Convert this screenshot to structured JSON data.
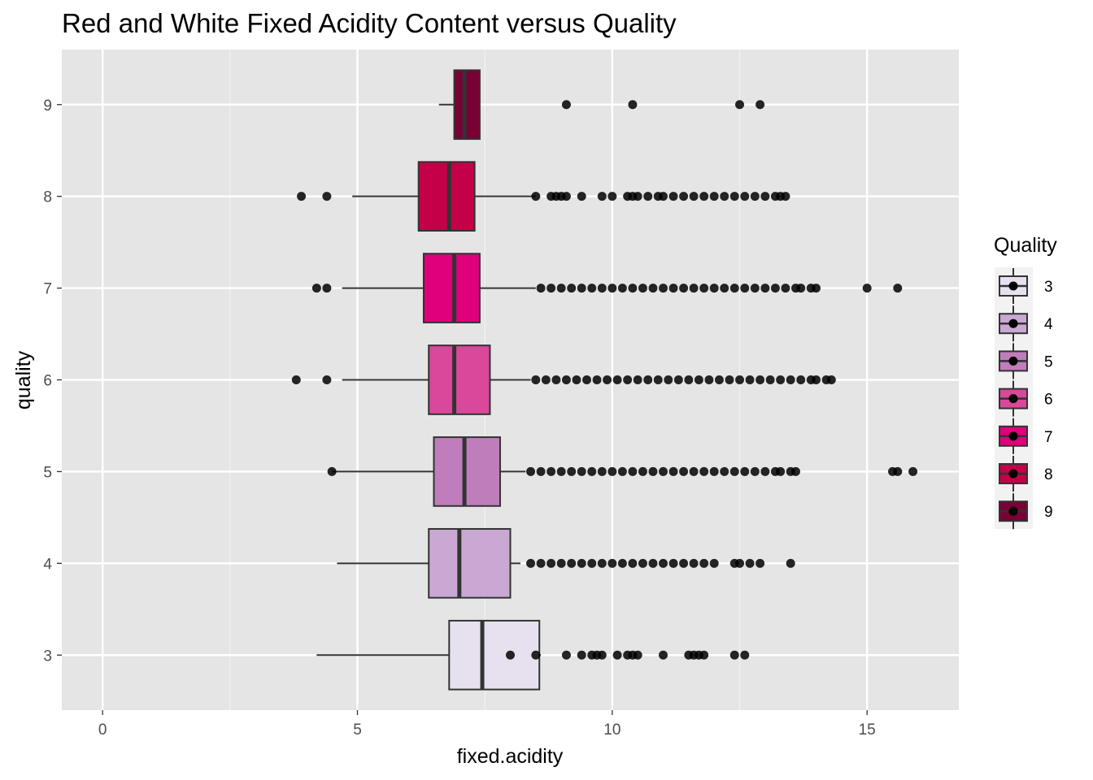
{
  "chart_data": {
    "type": "boxplot",
    "orientation": "horizontal",
    "title": "Red and White Fixed Acidity Content versus Quality",
    "xlabel": "fixed.acidity",
    "ylabel": "quality",
    "xlim": [
      -0.8,
      16.8
    ],
    "x_ticks": [
      0,
      5,
      10,
      15
    ],
    "categories": [
      "3",
      "4",
      "5",
      "6",
      "7",
      "8",
      "9"
    ],
    "grid": true,
    "legend": {
      "title": "Quality",
      "position": "right",
      "entries": [
        "3",
        "4",
        "5",
        "6",
        "7",
        "8",
        "9"
      ]
    },
    "series": [
      {
        "quality": "3",
        "color": "#e7e1ef",
        "min": 4.2,
        "q1": 6.8,
        "median": 7.45,
        "q3": 8.57,
        "max": 8.6,
        "outliers": [
          8.0,
          8.5,
          9.1,
          9.4,
          9.6,
          9.7,
          9.8,
          10.1,
          10.3,
          10.4,
          10.5,
          11.0,
          11.5,
          11.6,
          11.7,
          11.8,
          12.4,
          12.6
        ]
      },
      {
        "quality": "4",
        "color": "#c9a8d3",
        "min": 4.6,
        "q1": 6.4,
        "median": 7.0,
        "q3": 8.0,
        "max": 8.2,
        "outliers": [
          8.4,
          8.6,
          8.8,
          9.0,
          9.2,
          9.4,
          9.6,
          9.8,
          10.0,
          10.2,
          10.4,
          10.6,
          10.8,
          11.0,
          11.2,
          11.4,
          11.6,
          11.8,
          12.0,
          12.4,
          12.5,
          12.7,
          12.9,
          13.5
        ]
      },
      {
        "quality": "5",
        "color": "#bf7ebb",
        "min": 4.5,
        "q1": 6.5,
        "median": 7.1,
        "q3": 7.8,
        "max": 8.3,
        "outliers": [
          4.5,
          8.4,
          8.6,
          8.8,
          9.0,
          9.2,
          9.4,
          9.6,
          9.8,
          10.0,
          10.2,
          10.4,
          10.6,
          10.8,
          11.0,
          11.2,
          11.4,
          11.6,
          11.8,
          12.0,
          12.2,
          12.4,
          12.6,
          12.8,
          13.0,
          13.2,
          13.3,
          13.5,
          13.6,
          15.5,
          15.6,
          15.9
        ]
      },
      {
        "quality": "6",
        "color": "#d9489a",
        "min": 4.7,
        "q1": 6.4,
        "median": 6.9,
        "q3": 7.6,
        "max": 8.4,
        "outliers": [
          3.8,
          4.4,
          8.5,
          8.7,
          8.9,
          9.1,
          9.3,
          9.5,
          9.7,
          9.9,
          10.1,
          10.3,
          10.5,
          10.7,
          10.9,
          11.1,
          11.3,
          11.5,
          11.7,
          11.9,
          12.1,
          12.3,
          12.5,
          12.7,
          12.9,
          13.1,
          13.3,
          13.5,
          13.7,
          13.9,
          14.0,
          14.2,
          14.3
        ]
      },
      {
        "quality": "7",
        "color": "#e0007b",
        "min": 4.7,
        "q1": 6.3,
        "median": 6.9,
        "q3": 7.4,
        "max": 8.5,
        "outliers": [
          4.2,
          4.4,
          8.6,
          8.8,
          9.0,
          9.2,
          9.4,
          9.6,
          9.8,
          10.0,
          10.2,
          10.4,
          10.6,
          10.8,
          11.0,
          11.2,
          11.4,
          11.6,
          11.8,
          12.0,
          12.2,
          12.4,
          12.6,
          12.8,
          13.0,
          13.2,
          13.4,
          13.6,
          13.7,
          13.9,
          14.0,
          15.0,
          15.6
        ]
      },
      {
        "quality": "8",
        "color": "#c40049",
        "min": 4.9,
        "q1": 6.2,
        "median": 6.8,
        "q3": 7.3,
        "max": 8.5,
        "outliers": [
          3.9,
          4.4,
          8.5,
          8.8,
          8.9,
          9.0,
          9.1,
          9.4,
          9.8,
          10.0,
          10.3,
          10.4,
          10.5,
          10.7,
          10.9,
          11.0,
          11.2,
          11.4,
          11.6,
          11.8,
          12.0,
          12.2,
          12.4,
          12.6,
          12.8,
          13.0,
          13.2,
          13.3,
          13.4
        ]
      },
      {
        "quality": "9",
        "color": "#7a0036",
        "min": 6.6,
        "q1": 6.9,
        "median": 7.1,
        "q3": 7.4,
        "max": 7.4,
        "outliers": [
          9.1,
          10.4,
          12.5,
          12.9
        ]
      }
    ]
  }
}
